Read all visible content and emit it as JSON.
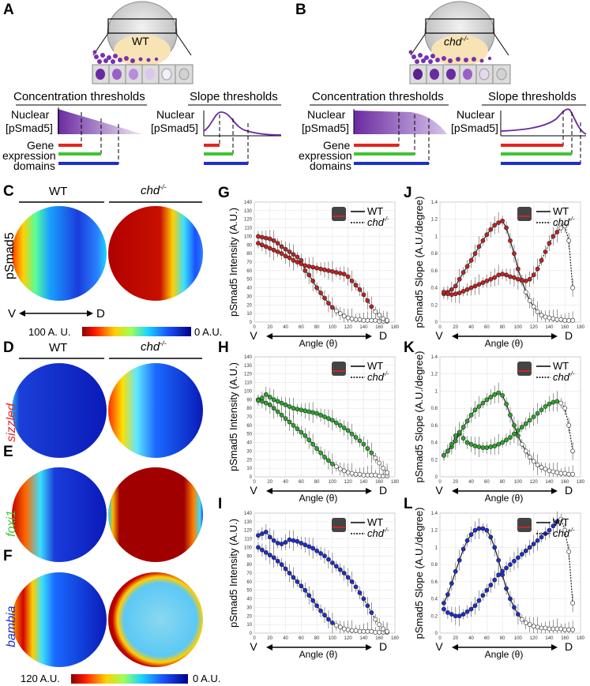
{
  "panels": {
    "A": {
      "letter": "A",
      "genotype": "WT",
      "conc_title": "Concentration thresholds",
      "slope_title": "Slope thresholds"
    },
    "B": {
      "letter": "B",
      "genotype": "chd",
      "conc_title": "Concentration thresholds",
      "slope_title": "Slope thresholds"
    },
    "C": {
      "letter": "C",
      "row_label": "pSmad5",
      "col1": "WT",
      "col2": "chd",
      "vd_left": "V",
      "vd_right": "D"
    },
    "D": {
      "letter": "D",
      "row_label": "sizzled",
      "col1": "WT",
      "col2": "chd"
    },
    "E": {
      "letter": "E",
      "row_label": "foxi1"
    },
    "F": {
      "letter": "F",
      "row_label": "bambia"
    },
    "G": {
      "letter": "G"
    },
    "H": {
      "letter": "H"
    },
    "I": {
      "letter": "I"
    },
    "J": {
      "letter": "J"
    },
    "K": {
      "letter": "K"
    },
    "L": {
      "letter": "L"
    }
  },
  "schematic": {
    "nuclear": "Nuclear",
    "psmad": "[pSmad5]",
    "gene": "Gene",
    "expression": "expression",
    "domains": "domains",
    "superscript": "-/-"
  },
  "colorbars": [
    {
      "left": "100 A. U.",
      "right": "0 A.U."
    },
    {
      "left": "120 A.U.",
      "right": "0 A.U."
    }
  ],
  "legend": {
    "wt": "WT",
    "chd": "chd",
    "sup": "-/-"
  },
  "axes": {
    "intensity_ylabel": "pSmad5 Intensity (A.U.)",
    "slope_ylabel": "pSmad5 Slope (A.U./degree)",
    "xlabel": "Angle (θ)",
    "v": "V",
    "d": "D"
  },
  "colors": {
    "red": "#e8231f",
    "green": "#3fc431",
    "blue": "#1c2fd0",
    "purple": "#6a2aa0"
  },
  "chart_data": [
    {
      "panel": "G",
      "type": "line",
      "color": "#c62020",
      "xlim": [
        0,
        180
      ],
      "ylim": [
        0,
        140
      ],
      "xticks": [
        0,
        20,
        40,
        60,
        80,
        100,
        120,
        140,
        160,
        180
      ],
      "yticks": [
        0,
        10,
        20,
        30,
        40,
        50,
        60,
        70,
        80,
        90,
        100,
        110,
        120,
        130,
        140
      ],
      "series": [
        {
          "name": "WT",
          "x": [
            5,
            10,
            15,
            20,
            25,
            30,
            35,
            40,
            45,
            50,
            55,
            60,
            65,
            70,
            75,
            80,
            85,
            90,
            95,
            100,
            105,
            110,
            115,
            120,
            125,
            130,
            135,
            140,
            145,
            150,
            155,
            160,
            165,
            170
          ],
          "values": [
            100,
            99,
            98,
            97,
            95,
            92,
            88,
            85,
            82,
            79,
            76,
            72,
            60,
            55,
            48,
            40,
            34,
            28,
            22,
            17,
            13,
            10,
            7,
            5,
            4,
            3,
            3,
            2,
            2,
            2,
            2,
            1,
            1,
            1
          ]
        },
        {
          "name": "chd",
          "x": [
            5,
            10,
            15,
            20,
            25,
            30,
            35,
            40,
            45,
            50,
            55,
            60,
            65,
            70,
            75,
            80,
            85,
            90,
            95,
            100,
            105,
            110,
            115,
            120,
            125,
            130,
            135,
            140,
            145,
            150,
            155,
            160,
            165,
            170
          ],
          "values": [
            92,
            90,
            88,
            86,
            84,
            82,
            80,
            77,
            75,
            72,
            70,
            68,
            66,
            65,
            64,
            63,
            62,
            61,
            60,
            59,
            58,
            57,
            56,
            53,
            48,
            43,
            38,
            32,
            25,
            18,
            12,
            8,
            4,
            2
          ]
        }
      ]
    },
    {
      "panel": "J",
      "type": "line",
      "color": "#c62020",
      "xlim": [
        0,
        180
      ],
      "ylim": [
        0,
        1.4
      ],
      "xticks": [
        0,
        20,
        40,
        60,
        80,
        100,
        120,
        140,
        160,
        180
      ],
      "yticks": [
        0,
        0.2,
        0.4,
        0.6,
        0.8,
        1,
        1.2,
        1.4
      ],
      "series": [
        {
          "name": "WT",
          "x": [
            5,
            10,
            15,
            20,
            25,
            30,
            35,
            40,
            45,
            50,
            55,
            60,
            65,
            70,
            75,
            80,
            85,
            90,
            95,
            100,
            105,
            110,
            115,
            120,
            125,
            130,
            135,
            140,
            145,
            150,
            155,
            160,
            165,
            170
          ],
          "values": [
            0.33,
            0.35,
            0.38,
            0.42,
            0.5,
            0.58,
            0.65,
            0.72,
            0.8,
            0.88,
            0.95,
            1.02,
            1.08,
            1.13,
            1.16,
            1.18,
            1.1,
            0.95,
            0.8,
            0.62,
            0.48,
            0.35,
            0.25,
            0.18,
            0.12,
            0.08,
            0.06,
            0.05,
            0.04,
            0.03,
            0.03,
            0.02,
            0.02,
            0.02
          ]
        },
        {
          "name": "chd",
          "x": [
            5,
            10,
            15,
            20,
            25,
            30,
            35,
            40,
            45,
            50,
            55,
            60,
            65,
            70,
            75,
            80,
            85,
            90,
            95,
            100,
            105,
            110,
            115,
            120,
            125,
            130,
            135,
            140,
            145,
            150,
            155,
            160,
            165,
            170
          ],
          "values": [
            0.35,
            0.33,
            0.32,
            0.33,
            0.34,
            0.36,
            0.38,
            0.4,
            0.42,
            0.44,
            0.46,
            0.48,
            0.5,
            0.52,
            0.55,
            0.56,
            0.55,
            0.53,
            0.52,
            0.5,
            0.49,
            0.48,
            0.5,
            0.55,
            0.62,
            0.72,
            0.82,
            0.92,
            1.0,
            1.05,
            1.1,
            1.12,
            0.95,
            0.4
          ]
        }
      ]
    },
    {
      "panel": "H",
      "type": "line",
      "color": "#2aa82a",
      "xlim": [
        0,
        180
      ],
      "ylim": [
        0,
        140
      ],
      "xticks": [
        0,
        20,
        40,
        60,
        80,
        100,
        120,
        140,
        160,
        180
      ],
      "yticks": [
        0,
        10,
        20,
        30,
        40,
        50,
        60,
        70,
        80,
        90,
        100,
        110,
        120,
        130,
        140
      ],
      "series": [
        {
          "name": "WT",
          "x": [
            5,
            10,
            15,
            20,
            25,
            30,
            35,
            40,
            45,
            50,
            55,
            60,
            65,
            70,
            75,
            80,
            85,
            90,
            95,
            100,
            105,
            110,
            115,
            120,
            125,
            130,
            135,
            140,
            145,
            150,
            155,
            160,
            165,
            170
          ],
          "values": [
            90,
            88,
            86,
            84,
            80,
            76,
            72,
            68,
            64,
            60,
            56,
            52,
            48,
            43,
            38,
            33,
            28,
            23,
            19,
            15,
            12,
            9,
            7,
            5,
            4,
            3,
            3,
            2,
            2,
            2,
            2,
            1,
            1,
            1
          ]
        },
        {
          "name": "chd",
          "x": [
            5,
            10,
            15,
            20,
            25,
            30,
            35,
            40,
            45,
            50,
            55,
            60,
            65,
            70,
            75,
            80,
            85,
            90,
            95,
            100,
            105,
            110,
            115,
            120,
            125,
            130,
            135,
            140,
            145,
            150,
            155,
            160,
            165,
            170
          ],
          "values": [
            89,
            92,
            96,
            93,
            90,
            88,
            86,
            84,
            82,
            80,
            79,
            78,
            77,
            76,
            75,
            74,
            72,
            70,
            68,
            66,
            63,
            60,
            57,
            54,
            50,
            46,
            42,
            38,
            33,
            28,
            22,
            16,
            10,
            5
          ]
        }
      ]
    },
    {
      "panel": "K",
      "type": "line",
      "color": "#2aa82a",
      "xlim": [
        0,
        180
      ],
      "ylim": [
        0,
        1.4
      ],
      "xticks": [
        0,
        20,
        40,
        60,
        80,
        100,
        120,
        140,
        160,
        180
      ],
      "yticks": [
        0,
        0.2,
        0.4,
        0.6,
        0.8,
        1,
        1.2,
        1.4
      ],
      "series": [
        {
          "name": "WT",
          "x": [
            5,
            10,
            15,
            20,
            25,
            30,
            35,
            40,
            45,
            50,
            55,
            60,
            65,
            70,
            75,
            80,
            85,
            90,
            95,
            100,
            105,
            110,
            115,
            120,
            125,
            130,
            135,
            140,
            145,
            150,
            155,
            160,
            165,
            170
          ],
          "values": [
            0.25,
            0.3,
            0.35,
            0.42,
            0.5,
            0.58,
            0.65,
            0.72,
            0.78,
            0.82,
            0.86,
            0.9,
            0.93,
            0.96,
            0.98,
            0.95,
            0.85,
            0.72,
            0.6,
            0.48,
            0.38,
            0.3,
            0.23,
            0.18,
            0.14,
            0.11,
            0.09,
            0.07,
            0.06,
            0.05,
            0.04,
            0.04,
            0.03,
            0.03
          ]
        },
        {
          "name": "chd",
          "x": [
            5,
            10,
            15,
            20,
            25,
            30,
            35,
            40,
            45,
            50,
            55,
            60,
            65,
            70,
            75,
            80,
            85,
            90,
            95,
            100,
            105,
            110,
            115,
            120,
            125,
            130,
            135,
            140,
            145,
            150,
            155,
            160,
            165,
            170
          ],
          "values": [
            0.25,
            0.3,
            0.38,
            0.48,
            0.52,
            0.45,
            0.4,
            0.38,
            0.36,
            0.35,
            0.34,
            0.34,
            0.35,
            0.36,
            0.38,
            0.4,
            0.43,
            0.46,
            0.5,
            0.54,
            0.58,
            0.62,
            0.66,
            0.7,
            0.74,
            0.78,
            0.82,
            0.85,
            0.87,
            0.88,
            0.86,
            0.8,
            0.6,
            0.3
          ]
        }
      ]
    },
    {
      "panel": "I",
      "type": "line",
      "color": "#1c2fd0",
      "xlim": [
        0,
        180
      ],
      "ylim": [
        0,
        140
      ],
      "xticks": [
        0,
        20,
        40,
        60,
        80,
        100,
        120,
        140,
        160,
        180
      ],
      "yticks": [
        0,
        10,
        20,
        30,
        40,
        50,
        60,
        70,
        80,
        90,
        100,
        110,
        120,
        130,
        140
      ],
      "series": [
        {
          "name": "WT",
          "x": [
            5,
            10,
            15,
            20,
            25,
            30,
            35,
            40,
            45,
            50,
            55,
            60,
            65,
            70,
            75,
            80,
            85,
            90,
            95,
            100,
            105,
            110,
            115,
            120,
            125,
            130,
            135,
            140,
            145,
            150,
            155,
            160,
            165,
            170
          ],
          "values": [
            100,
            97,
            94,
            91,
            88,
            84,
            80,
            75,
            70,
            65,
            60,
            55,
            50,
            44,
            38,
            32,
            26,
            21,
            16,
            12,
            9,
            7,
            5,
            4,
            3,
            3,
            2,
            2,
            2,
            2,
            1,
            1,
            1,
            1
          ]
        },
        {
          "name": "chd",
          "x": [
            5,
            10,
            15,
            20,
            25,
            30,
            35,
            40,
            45,
            50,
            55,
            60,
            65,
            70,
            75,
            80,
            85,
            90,
            95,
            100,
            105,
            110,
            115,
            120,
            125,
            130,
            135,
            140,
            145,
            150,
            155,
            160,
            165,
            170
          ],
          "values": [
            114,
            116,
            118,
            112,
            108,
            105,
            104,
            106,
            109,
            108,
            107,
            105,
            103,
            101,
            99,
            96,
            93,
            90,
            86,
            82,
            78,
            74,
            70,
            65,
            60,
            54,
            47,
            40,
            32,
            24,
            16,
            10,
            5,
            2
          ]
        }
      ]
    },
    {
      "panel": "L",
      "type": "line",
      "color": "#1c2fd0",
      "xlim": [
        0,
        180
      ],
      "ylim": [
        0,
        1.4
      ],
      "xticks": [
        0,
        20,
        40,
        60,
        80,
        100,
        120,
        140,
        160,
        180
      ],
      "yticks": [
        0,
        0.2,
        0.4,
        0.6,
        0.8,
        1,
        1.2,
        1.4
      ],
      "series": [
        {
          "name": "WT",
          "x": [
            5,
            10,
            15,
            20,
            25,
            30,
            35,
            40,
            45,
            50,
            55,
            60,
            65,
            70,
            75,
            80,
            85,
            90,
            95,
            100,
            105,
            110,
            115,
            120,
            125,
            130,
            135,
            140,
            145,
            150,
            155,
            160,
            165,
            170
          ],
          "values": [
            0.35,
            0.45,
            0.58,
            0.72,
            0.85,
            0.98,
            1.08,
            1.15,
            1.2,
            1.22,
            1.22,
            1.2,
            1.12,
            1.0,
            0.85,
            0.68,
            0.52,
            0.4,
            0.3,
            0.22,
            0.16,
            0.12,
            0.1,
            0.08,
            0.07,
            0.06,
            0.06,
            0.05,
            0.05,
            0.05,
            0.05,
            0.04,
            0.04,
            0.04
          ]
        },
        {
          "name": "chd",
          "x": [
            5,
            10,
            15,
            20,
            25,
            30,
            35,
            40,
            45,
            50,
            55,
            60,
            65,
            70,
            75,
            80,
            85,
            90,
            95,
            100,
            105,
            110,
            115,
            120,
            125,
            130,
            135,
            140,
            145,
            150,
            155,
            160,
            165,
            170
          ],
          "values": [
            0.28,
            0.24,
            0.22,
            0.2,
            0.2,
            0.22,
            0.25,
            0.28,
            0.32,
            0.38,
            0.44,
            0.5,
            0.56,
            0.62,
            0.68,
            0.72,
            0.76,
            0.8,
            0.84,
            0.88,
            0.92,
            0.96,
            1.0,
            1.04,
            1.08,
            1.12,
            1.16,
            1.2,
            1.25,
            1.3,
            1.33,
            1.2,
            0.95,
            0.35
          ]
        }
      ]
    }
  ]
}
